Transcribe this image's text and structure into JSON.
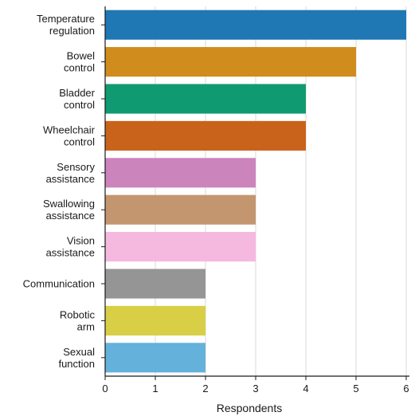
{
  "chart_data": {
    "type": "bar",
    "orientation": "horizontal",
    "categories": [
      [
        "Temperature",
        "regulation"
      ],
      [
        "Bowel",
        "control"
      ],
      [
        "Bladder",
        "control"
      ],
      [
        "Wheelchair",
        "control"
      ],
      [
        "Sensory",
        "assistance"
      ],
      [
        "Swallowing",
        "assistance"
      ],
      [
        "Vision",
        "assistance"
      ],
      [
        "Communication"
      ],
      [
        "Robotic",
        "arm"
      ],
      [
        "Sexual",
        "function"
      ]
    ],
    "values": [
      6,
      5,
      4,
      4,
      3,
      3,
      3,
      2,
      2,
      2
    ],
    "colors": [
      "#1f77b4",
      "#d08c1c",
      "#0f9a71",
      "#c9631b",
      "#cc84bc",
      "#c49670",
      "#f5b9df",
      "#959595",
      "#d8cf46",
      "#64b1db"
    ],
    "title": "",
    "xlabel": "Respondents",
    "ylabel": "",
    "xlim": [
      0,
      6
    ],
    "xticks": [
      "0",
      "1",
      "2",
      "3",
      "4",
      "5",
      "6"
    ],
    "grid": "vertical"
  }
}
